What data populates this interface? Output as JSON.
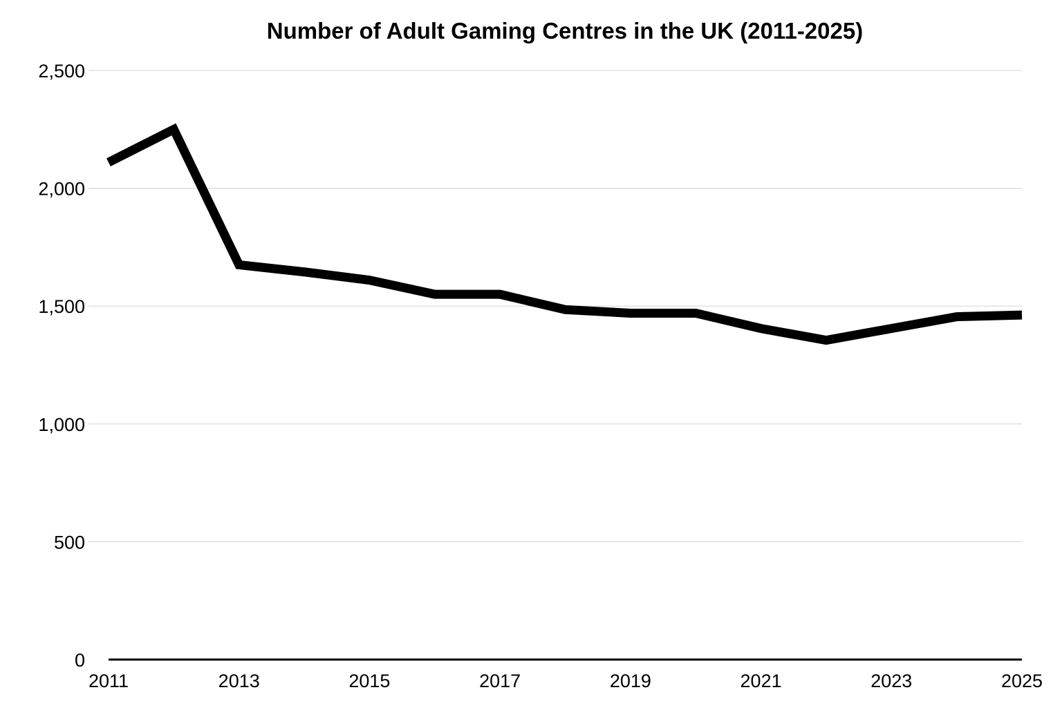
{
  "chart_data": {
    "type": "line",
    "title": "Number of Adult Gaming Centres in the UK (2011-2025)",
    "xlabel": "",
    "ylabel": "",
    "x": [
      2011,
      2012,
      2013,
      2014,
      2015,
      2016,
      2017,
      2018,
      2019,
      2020,
      2021,
      2022,
      2023,
      2024,
      2025
    ],
    "series": [
      {
        "values": [
          2110,
          2250,
          1675,
          1645,
          1610,
          1550,
          1550,
          1485,
          1470,
          1470,
          1405,
          1355,
          1405,
          1455,
          1462
        ]
      }
    ],
    "xlim": [
      2011,
      2025
    ],
    "ylim": [
      0,
      2500
    ],
    "x_ticks": [
      "2011",
      "2013",
      "2015",
      "2017",
      "2019",
      "2021",
      "2023",
      "2025"
    ],
    "y_ticks": [
      "0",
      "500",
      "1,000",
      "1,500",
      "2,000",
      "2,500"
    ],
    "grid": "horizontal",
    "line_color": "#000000",
    "grid_color": "#d9d9d9",
    "axis_color": "#000000"
  }
}
